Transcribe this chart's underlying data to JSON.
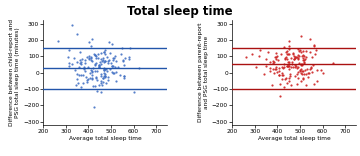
{
  "title": "Total sleep time",
  "xlabel": "Average total sleep time",
  "ylabel_left": "Difference between child-report and\nPSG total sleep time (minutes)",
  "ylabel_right": "Difference between parent-report\nand PSG total sleep time",
  "xlim": [
    200,
    750
  ],
  "ylim": [
    -320,
    320
  ],
  "blue_hlines": [
    150,
    30,
    -100
  ],
  "red_hlines": [
    150,
    50,
    -100
  ],
  "blue_color": "#4472c4",
  "red_color": "#cc2222",
  "line_color_blue": "#2255aa",
  "line_color_red": "#aa1111",
  "background": "#ffffff",
  "seed_blue": 42,
  "seed_red": 99,
  "n_points": 160,
  "title_fontsize": 8.5,
  "label_fontsize": 4.2,
  "tick_fontsize": 4.2,
  "yticks": [
    -300,
    -200,
    -100,
    0,
    100,
    200,
    300
  ],
  "xticks": [
    200,
    300,
    400,
    500,
    600,
    700
  ]
}
